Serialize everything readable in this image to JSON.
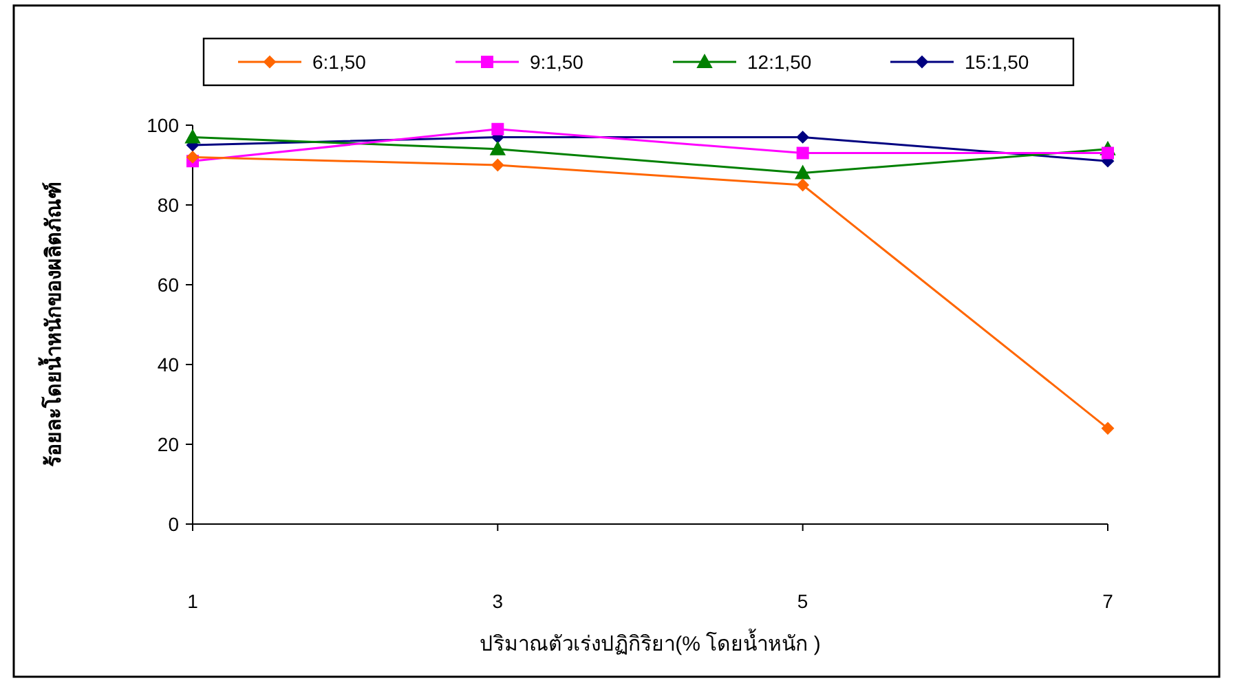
{
  "chart_data": {
    "type": "line",
    "xlabel": "ปริมาณตัวเร่งปฏิกิริยา(% โดยน้ำหนัก )",
    "ylabel": "ร้อยละโดยน้ำหนักของผลิตภัณฑ์",
    "categories": [
      "1",
      "3",
      "5",
      "7"
    ],
    "ylim": [
      0,
      100
    ],
    "yticks": [
      0,
      20,
      40,
      60,
      80,
      100
    ],
    "grid": false,
    "legend": "top",
    "series": [
      {
        "name": "6:1,50",
        "color": "#ff6600",
        "marker": "diamond",
        "values": [
          92,
          90,
          85,
          24
        ]
      },
      {
        "name": "9:1,50",
        "color": "#ff00ff",
        "marker": "square",
        "values": [
          91,
          99,
          93,
          93
        ]
      },
      {
        "name": "12:1,50",
        "color": "#008000",
        "marker": "triangle",
        "values": [
          97,
          94,
          88,
          94
        ]
      },
      {
        "name": "15:1,50",
        "color": "#000080",
        "marker": "diamond",
        "values": [
          95,
          97,
          97,
          91
        ]
      }
    ]
  }
}
